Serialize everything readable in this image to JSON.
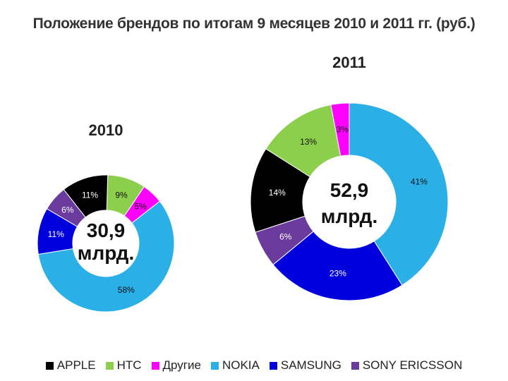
{
  "chart_data": [
    {
      "type": "donut",
      "title": "2010",
      "center_value": "30,9",
      "center_unit": "млрд.",
      "slices": [
        {
          "name": "NOKIA",
          "value": 58,
          "label": "58%"
        },
        {
          "name": "SAMSUNG",
          "value": 11,
          "label": "11%"
        },
        {
          "name": "SONY ERICSSON",
          "value": 6,
          "label": "6%"
        },
        {
          "name": "APPLE",
          "value": 11,
          "label": "11%"
        },
        {
          "name": "HTC",
          "value": 9,
          "label": "9%"
        },
        {
          "name": "Другие",
          "value": 5,
          "label": "5%"
        }
      ]
    },
    {
      "type": "donut",
      "title": "2011",
      "center_value": "52,9",
      "center_unit": "млрд.",
      "slices": [
        {
          "name": "NOKIA",
          "value": 41,
          "label": "41%"
        },
        {
          "name": "SAMSUNG",
          "value": 23,
          "label": "23%"
        },
        {
          "name": "SONY ERICSSON",
          "value": 6,
          "label": "6%"
        },
        {
          "name": "APPLE",
          "value": 14,
          "label": "14%"
        },
        {
          "name": "HTC",
          "value": 13,
          "label": "13%"
        },
        {
          "name": "Другие",
          "value": 3,
          "label": "3%"
        }
      ]
    }
  ],
  "page": {
    "title": "Положение брендов по итогам 9 месяцев 2010 и 2011 гг. (руб.)"
  },
  "legend": [
    {
      "name": "APPLE",
      "color": "#000000"
    },
    {
      "name": "HTC",
      "color": "#8ccf4d"
    },
    {
      "name": "Другие",
      "color": "#ff00ff"
    },
    {
      "name": "NOKIA",
      "color": "#2ab0e6"
    },
    {
      "name": "SAMSUNG",
      "color": "#0000dd"
    },
    {
      "name": "SONY ERICSSON",
      "color": "#6a3a9c"
    }
  ]
}
